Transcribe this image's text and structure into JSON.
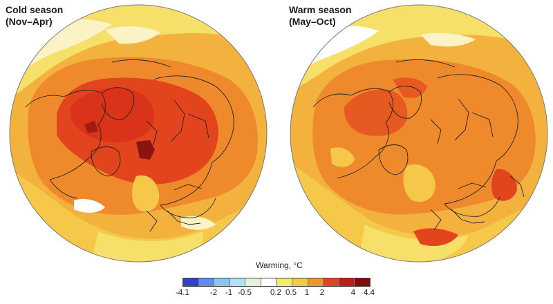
{
  "panels": [
    {
      "title_line1": "Cold season",
      "title_line2": "(Nov–Apr)"
    },
    {
      "title_line1": "Warm season",
      "title_line2": "(May–Oct)"
    }
  ],
  "legend": {
    "title": "Warming, °C",
    "colors": [
      "#3340c8",
      "#5a8ff0",
      "#86c6f2",
      "#aee2f5",
      "#e2f3d9",
      "#ffffff",
      "#f3eb6c",
      "#f6c84a",
      "#f0952d",
      "#e2441e",
      "#c41b10",
      "#7e0c0c"
    ],
    "ticks": [
      "-4.1",
      "-2",
      "-1",
      "-0.5",
      "0.2",
      "0.5",
      "1",
      "2",
      "4",
      "4.4"
    ]
  },
  "map_colors": {
    "ocean_land_base": "#f3a33a",
    "light_yellow": "#f6e06a",
    "pale": "#fbf3c6",
    "white": "#ffffff",
    "orange": "#ef8a2c",
    "red_orange": "#e65a22",
    "red": "#d9331a",
    "dark_red": "#8c1410",
    "border": "#222222"
  }
}
